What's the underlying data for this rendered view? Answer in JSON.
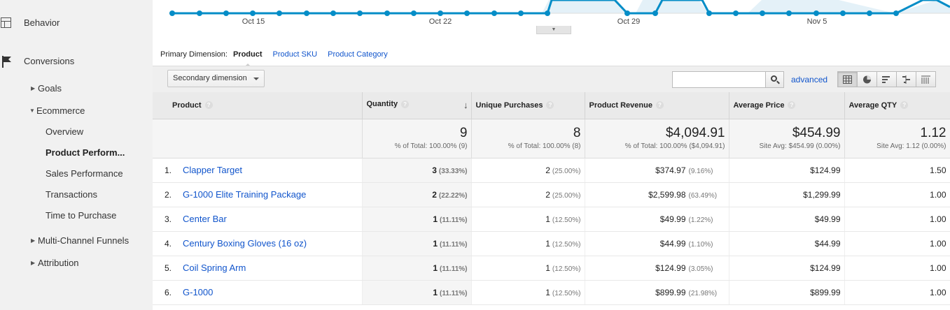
{
  "sidebar": {
    "behavior": "Behavior",
    "conversions": "Conversions",
    "goals": "Goals",
    "ecommerce": "Ecommerce",
    "overview": "Overview",
    "product_performance": "Product Perform...",
    "sales_performance": "Sales Performance",
    "transactions": "Transactions",
    "time_to_purchase": "Time to Purchase",
    "multi_channel": "Multi-Channel Funnels",
    "attribution": "Attribution"
  },
  "chart": {
    "x_labels": [
      "Oct 15",
      "Oct 22",
      "Oct 29",
      "Nov 5"
    ],
    "line_color": "#058dc7",
    "fill_color": "#e4f1f8"
  },
  "primary_dimension": {
    "label": "Primary Dimension:",
    "current": "Product",
    "option_sku": "Product SKU",
    "option_category": "Product Category"
  },
  "toolbar": {
    "secondary_dimension": "Secondary dimension",
    "search_value": "",
    "advanced": "advanced"
  },
  "table": {
    "headers": {
      "product": "Product",
      "quantity": "Quantity",
      "unique_purchases": "Unique Purchases",
      "product_revenue": "Product Revenue",
      "average_price": "Average Price",
      "average_qty": "Average QTY"
    },
    "help_glyph": "?",
    "sort_glyph": "↓",
    "totals": {
      "quantity": "9",
      "quantity_sub": "% of Total: 100.00% (9)",
      "unique_purchases": "8",
      "unique_purchases_sub": "% of Total: 100.00% (8)",
      "product_revenue": "$4,094.91",
      "product_revenue_sub": "% of Total: 100.00% ($4,094.91)",
      "average_price": "$454.99",
      "average_price_sub": "Site Avg: $454.99 (0.00%)",
      "average_qty": "1.12",
      "average_qty_sub": "Site Avg: 1.12 (0.00%)"
    },
    "rows": [
      {
        "idx": "1.",
        "product": "Clapper Target",
        "qty": "3",
        "qty_pct": "(33.33%)",
        "up": "2",
        "up_pct": "(25.00%)",
        "rev": "$374.97",
        "rev_pct": "(9.16%)",
        "avg_price": "$124.99",
        "avg_qty": "1.50"
      },
      {
        "idx": "2.",
        "product": "G-1000 Elite Training Package",
        "qty": "2",
        "qty_pct": "(22.22%)",
        "up": "2",
        "up_pct": "(25.00%)",
        "rev": "$2,599.98",
        "rev_pct": "(63.49%)",
        "avg_price": "$1,299.99",
        "avg_qty": "1.00"
      },
      {
        "idx": "3.",
        "product": "Center Bar",
        "qty": "1",
        "qty_pct": "(11.11%)",
        "up": "1",
        "up_pct": "(12.50%)",
        "rev": "$49.99",
        "rev_pct": "(1.22%)",
        "avg_price": "$49.99",
        "avg_qty": "1.00"
      },
      {
        "idx": "4.",
        "product": "Century Boxing Gloves (16 oz)",
        "qty": "1",
        "qty_pct": "(11.11%)",
        "up": "1",
        "up_pct": "(12.50%)",
        "rev": "$44.99",
        "rev_pct": "(1.10%)",
        "avg_price": "$44.99",
        "avg_qty": "1.00"
      },
      {
        "idx": "5.",
        "product": "Coil Spring Arm",
        "qty": "1",
        "qty_pct": "(11.11%)",
        "up": "1",
        "up_pct": "(12.50%)",
        "rev": "$124.99",
        "rev_pct": "(3.05%)",
        "avg_price": "$124.99",
        "avg_qty": "1.00"
      },
      {
        "idx": "6.",
        "product": "G-1000",
        "qty": "1",
        "qty_pct": "(11.11%)",
        "up": "1",
        "up_pct": "(12.50%)",
        "rev": "$899.99",
        "rev_pct": "(21.98%)",
        "avg_price": "$899.99",
        "avg_qty": "1.00"
      }
    ]
  },
  "icons": {
    "behavior": "layout-icon",
    "conversions": "flag-icon",
    "search": "search-icon",
    "views": [
      "table-view-icon",
      "pie-view-icon",
      "bar-view-icon",
      "comparison-view-icon",
      "pivot-view-icon"
    ]
  }
}
